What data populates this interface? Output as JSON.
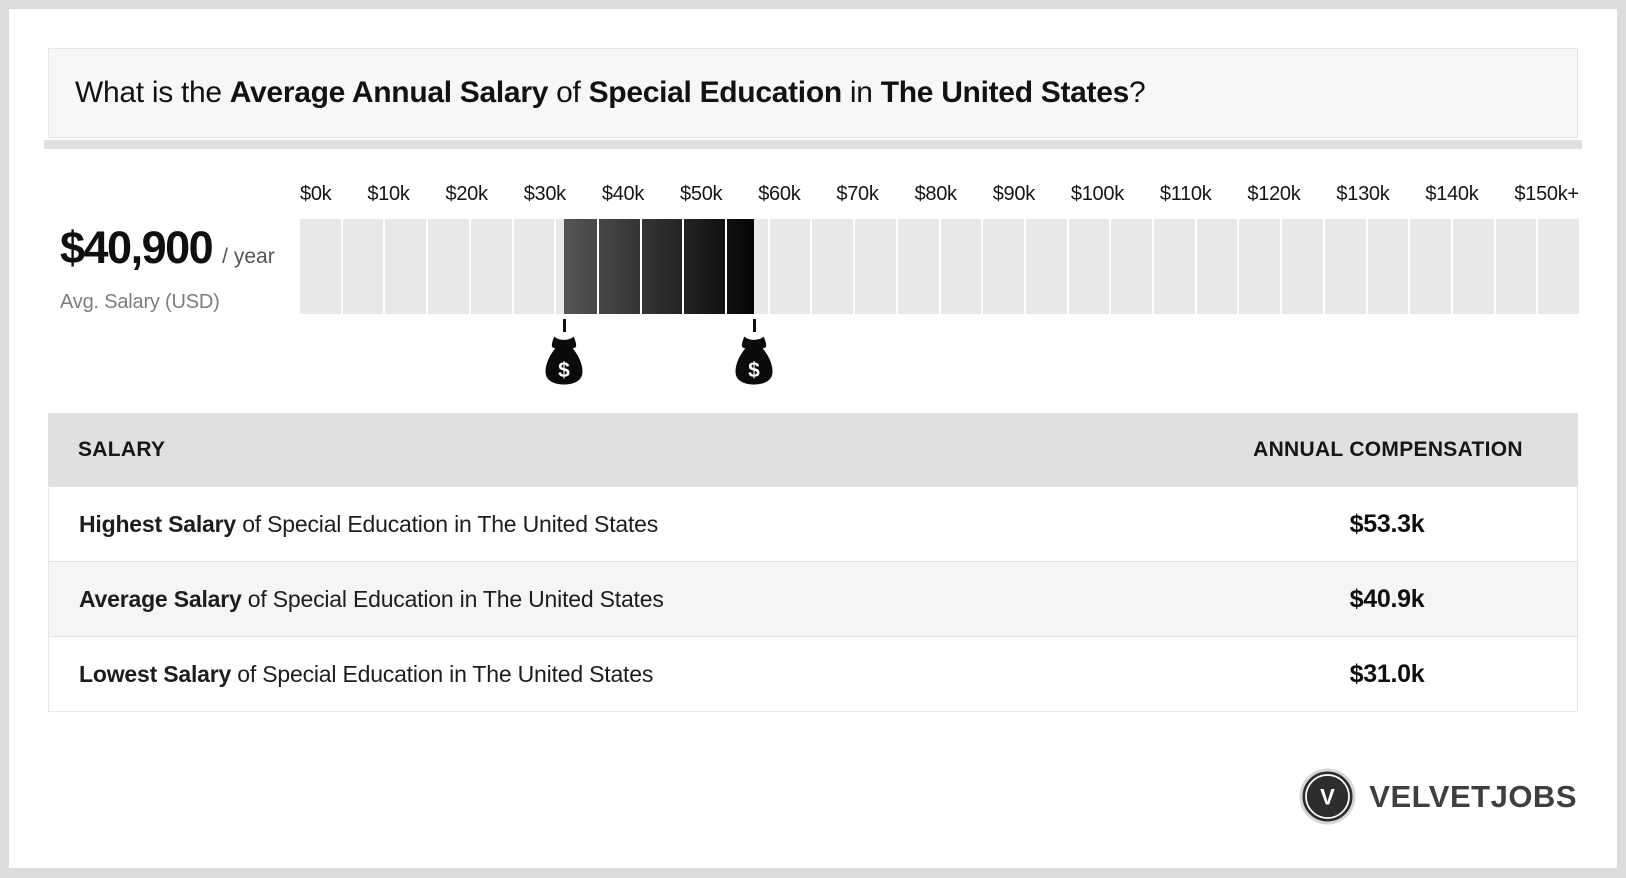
{
  "title": {
    "parts": [
      {
        "text": "What is the ",
        "bold": false
      },
      {
        "text": "Average Annual Salary",
        "bold": true
      },
      {
        "text": " of ",
        "bold": false
      },
      {
        "text": "Special Education",
        "bold": true
      },
      {
        "text": " in ",
        "bold": false
      },
      {
        "text": "The United States",
        "bold": true
      },
      {
        "text": "?",
        "bold": false
      }
    ]
  },
  "stat": {
    "amount": "$40,900",
    "per": "/ year",
    "caption": "Avg. Salary (USD)"
  },
  "chart_data": {
    "type": "bar",
    "title": "Annual salary range scale for Special Education in The United States",
    "axis_labels": [
      "$0k",
      "$10k",
      "$20k",
      "$30k",
      "$40k",
      "$50k",
      "$60k",
      "$70k",
      "$80k",
      "$90k",
      "$100k",
      "$110k",
      "$120k",
      "$130k",
      "$140k",
      "$150k+"
    ],
    "axis_min_k": 0,
    "axis_max_k": 150,
    "segment_size_k": 5,
    "track_color": "#e8e8e8",
    "highlight_range_k": {
      "start": 31.0,
      "end": 53.3
    },
    "highlight_gradient": [
      "#555557",
      "#050505"
    ],
    "markers": [
      {
        "value_k": 31.0,
        "icon": "money-bag-icon",
        "meaning": "Lowest salary $31.0k"
      },
      {
        "value_k": 53.3,
        "icon": "money-bag-icon",
        "meaning": "Highest salary $53.3k"
      }
    ],
    "average_k": 40.9
  },
  "table": {
    "columns": [
      "SALARY",
      "ANNUAL COMPENSATION"
    ],
    "rows": [
      {
        "label_bold": "Highest Salary",
        "label_rest": " of Special Education in The United States",
        "value": "$53.3k"
      },
      {
        "label_bold": "Average Salary",
        "label_rest": " of Special Education in The United States",
        "value": "$40.9k"
      },
      {
        "label_bold": "Lowest Salary",
        "label_rest": " of Special Education in The United States",
        "value": "$31.0k"
      }
    ]
  },
  "logo": {
    "monogram": "V",
    "text": "VELVETJOBS"
  },
  "colors": {
    "page_frame": "#dcdcdc",
    "title_card_bg": "#f7f7f7",
    "table_header_bg": "#e0e0e0",
    "row_alt_bg": "#f5f5f5",
    "logo_text": "#3f3f3f"
  }
}
